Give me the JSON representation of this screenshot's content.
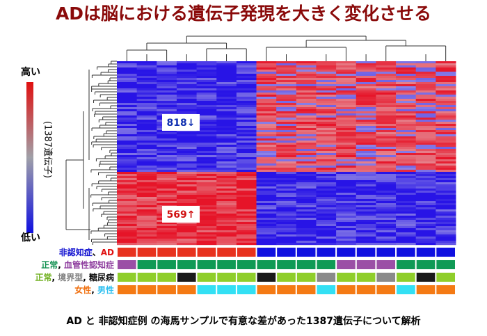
{
  "title": "ADは脳における遺伝子発現を大きく変化させる",
  "scale": {
    "high": "高い",
    "low": "低い",
    "genes": "(1387遺伝子)"
  },
  "clusters": {
    "down": "818↓",
    "up": "569↑"
  },
  "annotations": [
    {
      "label": [
        {
          "text": "非認知症",
          "color": "#1010d0"
        },
        {
          "text": "、",
          "color": "#000000"
        },
        {
          "text": "AD",
          "color": "#e01010"
        }
      ],
      "cells": [
        "#e8321e",
        "#e8321e",
        "#e8321e",
        "#e8321e",
        "#e8321e",
        "#e8321e",
        "#e8321e",
        "#1010e0",
        "#1010e0",
        "#1010e0",
        "#1010e0",
        "#1010e0",
        "#1010e0",
        "#1010e0",
        "#1010e0",
        "#1010e0",
        "#1010e0"
      ]
    },
    {
      "label": [
        {
          "text": "正常",
          "color": "#109050"
        },
        {
          "text": ", ",
          "color": "#000000"
        },
        {
          "text": "血管性認知症",
          "color": "#9040a0"
        }
      ],
      "cells": [
        "#9b4fa6",
        "#0f9a55",
        "#0f9a55",
        "#0f9a55",
        "#0f9a55",
        "#0f9a55",
        "#0f9a55",
        "#0f9a55",
        "#0f9a55",
        "#0f9a55",
        "#0f9a55",
        "#9b4fa6",
        "#9b4fa6",
        "#9b4fa6",
        "#0f9a55",
        "#0f9a55",
        "#0f9a55"
      ]
    },
    {
      "label": [
        {
          "text": "正常",
          "color": "#70b020"
        },
        {
          "text": ", ",
          "color": "#000000"
        },
        {
          "text": "境界型",
          "color": "#808080"
        },
        {
          "text": ", ",
          "color": "#000000"
        },
        {
          "text": "糖尿病",
          "color": "#101010"
        }
      ],
      "cells": [
        "#8fce2a",
        "#8fce2a",
        "#8fce2a",
        "#1a1a1a",
        "#8fce2a",
        "#8fce2a",
        "#8fce2a",
        "#1a1a1a",
        "#8fce2a",
        "#8fce2a",
        "#8a8a8a",
        "#8fce2a",
        "#8fce2a",
        "#8a8a8a",
        "#8fce2a",
        "#1a1a1a",
        "#8fce2a"
      ]
    },
    {
      "label": [
        {
          "text": "女性",
          "color": "#f07010"
        },
        {
          "text": ", ",
          "color": "#000000"
        },
        {
          "text": "男性",
          "color": "#30c0f0"
        }
      ],
      "cells": [
        "#f47a14",
        "#f47a14",
        "#f47a14",
        "#f47a14",
        "#33e0f4",
        "#33e0f4",
        "#33e0f4",
        "#f47a14",
        "#f47a14",
        "#f47a14",
        "#33e0f4",
        "#f47a14",
        "#f47a14",
        "#f47a14",
        "#33e0f4",
        "#f47a14",
        "#f47a14"
      ]
    }
  ],
  "caption": "AD と 非認知症例 の海馬サンプルで有意な差があった1387遺伝子について解析"
}
